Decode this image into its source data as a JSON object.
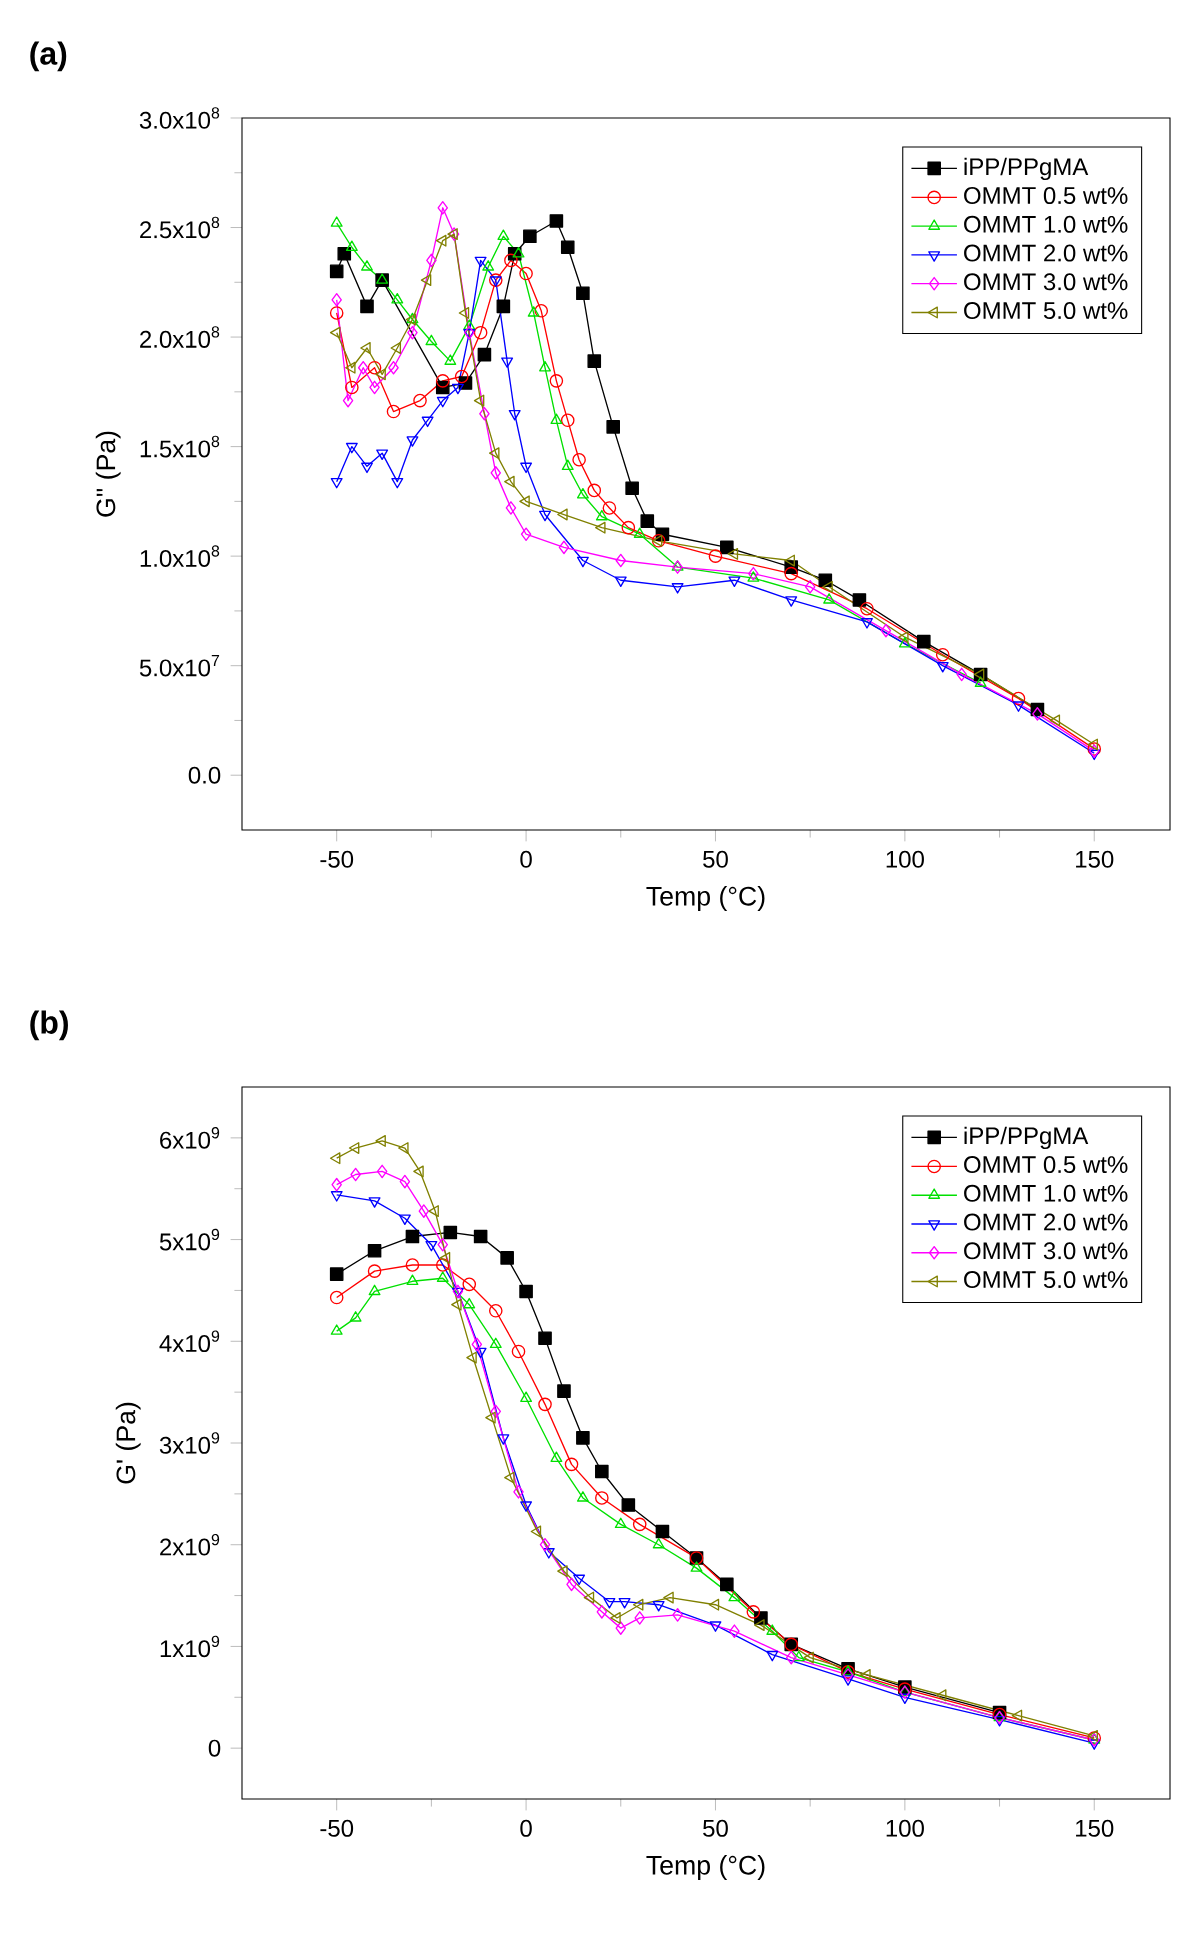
{
  "chart_data": [
    {
      "type": "line",
      "title": "(a)",
      "xlabel": "Temp (°C)",
      "ylabel": "G\" (Pa)",
      "xlim": [
        -75,
        170
      ],
      "ylim": [
        -25000000,
        300000000
      ],
      "xticks": [
        -50,
        0,
        50,
        100,
        150
      ],
      "yticks": [
        {
          "value": 0,
          "label": "0.0"
        },
        {
          "value": 50000000,
          "label": "5.0x10$^{7}$"
        },
        {
          "value": 100000000,
          "label": "1.0x10$^{8}$"
        },
        {
          "value": 150000000,
          "label": "1.5x10$^{8}$"
        },
        {
          "value": 200000000,
          "label": "2.0x10$^{8}$"
        },
        {
          "value": 250000000,
          "label": "2.5x10$^{8}$"
        },
        {
          "value": 300000000,
          "label": "3.0x10$^{8}$"
        }
      ],
      "legend": "top right",
      "series": [
        {
          "name": "iPP/PPgMA",
          "color": "#000000",
          "marker": "square",
          "x": [
            -50,
            -48,
            -42,
            -38,
            -22,
            -16,
            -11,
            -6,
            -3,
            1,
            8,
            11,
            15,
            18,
            23,
            28,
            32,
            36,
            53,
            70,
            79,
            88,
            105,
            120,
            135
          ],
          "values": [
            230000000,
            238000000,
            214000000,
            226000000,
            177000000,
            179000000,
            192000000,
            214000000,
            238000000,
            246000000,
            253000000,
            241000000,
            220000000,
            189000000,
            159000000,
            131000000,
            116000000,
            110000000,
            104000000,
            95000000,
            89000000,
            80000000,
            61000000,
            46000000,
            30000000
          ]
        },
        {
          "name": "OMMT 0.5 wt%",
          "color": "#ff0000",
          "marker": "circle",
          "x": [
            -50,
            -46,
            -40,
            -35,
            -28,
            -22,
            -17,
            -12,
            -8,
            -4,
            0,
            4,
            8,
            11,
            14,
            18,
            22,
            27,
            35,
            50,
            70,
            90,
            110,
            130,
            150
          ],
          "values": [
            211000000,
            177000000,
            186000000,
            166000000,
            171000000,
            180000000,
            182000000,
            202000000,
            226000000,
            235000000,
            229000000,
            212000000,
            180000000,
            162000000,
            144000000,
            130000000,
            122000000,
            113000000,
            107000000,
            100000000,
            92000000,
            76000000,
            55000000,
            35000000,
            12000000
          ]
        },
        {
          "name": "OMMT 1.0 wt%",
          "color": "#00e000",
          "marker": "triangle",
          "x": [
            -50,
            -46,
            -42,
            -38,
            -34,
            -30,
            -25,
            -20,
            -15,
            -10,
            -6,
            -2,
            2,
            5,
            8,
            11,
            15,
            20,
            30,
            40,
            60,
            80,
            100,
            120
          ],
          "values": [
            252000000,
            241000000,
            232000000,
            226000000,
            217000000,
            208000000,
            198000000,
            189000000,
            205000000,
            232000000,
            246000000,
            238000000,
            211000000,
            186000000,
            162000000,
            141000000,
            128000000,
            118000000,
            110000000,
            95000000,
            90000000,
            80000000,
            60000000,
            42000000
          ]
        },
        {
          "name": "OMMT 2.0 wt%",
          "color": "#0000ff",
          "marker": "triangle-down",
          "x": [
            -50,
            -46,
            -42,
            -38,
            -34,
            -30,
            -26,
            -22,
            -18,
            -15,
            -12,
            -8,
            -5,
            -3,
            0,
            5,
            15,
            25,
            40,
            55,
            70,
            90,
            110,
            130,
            150
          ],
          "values": [
            134000000,
            150000000,
            141000000,
            147000000,
            134000000,
            153000000,
            162000000,
            171000000,
            177000000,
            202000000,
            235000000,
            226000000,
            189000000,
            165000000,
            141000000,
            119000000,
            98000000,
            89000000,
            86000000,
            89000000,
            80000000,
            70000000,
            50000000,
            32000000,
            10000000
          ]
        },
        {
          "name": "OMMT 3.0 wt%",
          "color": "#ff00ff",
          "marker": "diamond",
          "x": [
            -50,
            -47,
            -43,
            -40,
            -35,
            -30,
            -25,
            -22,
            -19,
            -15,
            -11,
            -8,
            -4,
            0,
            10,
            25,
            40,
            60,
            75,
            95,
            115,
            135,
            150
          ],
          "values": [
            217000000,
            171000000,
            186000000,
            177000000,
            186000000,
            202000000,
            235000000,
            259000000,
            247000000,
            202000000,
            165000000,
            138000000,
            122000000,
            110000000,
            104000000,
            98000000,
            95000000,
            92000000,
            86000000,
            66000000,
            46000000,
            28000000,
            11000000
          ]
        },
        {
          "name": "OMMT 5.0 wt%",
          "color": "#808000",
          "marker": "triangle-left",
          "x": [
            -50,
            -46,
            -42,
            -38,
            -34,
            -30,
            -26,
            -22,
            -19,
            -16,
            -12,
            -8,
            -4,
            0,
            10,
            20,
            35,
            55,
            70,
            80,
            100,
            120,
            140,
            150
          ],
          "values": [
            202000000,
            186000000,
            195000000,
            183000000,
            195000000,
            208000000,
            226000000,
            244000000,
            247000000,
            211000000,
            171000000,
            147000000,
            134000000,
            125000000,
            119000000,
            113000000,
            107000000,
            101000000,
            98000000,
            86000000,
            63000000,
            46000000,
            25000000,
            14000000
          ]
        }
      ]
    },
    {
      "type": "line",
      "title": "(b)",
      "xlabel": "Temp (°C)",
      "ylabel": "G' (Pa)",
      "xlim": [
        -75,
        170
      ],
      "ylim": [
        -500000000,
        6500000000
      ],
      "xticks": [
        -50,
        0,
        50,
        100,
        150
      ],
      "yticks": [
        {
          "value": 0,
          "label": "0"
        },
        {
          "value": 1000000000,
          "label": "1x10$^{9}$"
        },
        {
          "value": 2000000000,
          "label": "2x10$^{9}$"
        },
        {
          "value": 3000000000,
          "label": "3x10$^{9}$"
        },
        {
          "value": 4000000000,
          "label": "4x10$^{9}$"
        },
        {
          "value": 5000000000,
          "label": "5x10$^{9}$"
        },
        {
          "value": 6000000000,
          "label": "6x10$^{9}$"
        }
      ],
      "legend": "top right",
      "series": [
        {
          "name": "iPP/PPgMA",
          "color": "#000000",
          "marker": "square",
          "x": [
            -50,
            -40,
            -30,
            -20,
            -12,
            -5,
            0,
            5,
            10,
            15,
            20,
            27,
            36,
            45,
            53,
            62,
            70,
            85,
            100,
            125
          ],
          "values": [
            4660000000,
            4890000000,
            5030000000,
            5070000000,
            5030000000,
            4820000000,
            4490000000,
            4030000000,
            3510000000,
            3050000000,
            2720000000,
            2390000000,
            2130000000,
            1870000000,
            1610000000,
            1280000000,
            1020000000,
            780000000,
            600000000,
            350000000
          ]
        },
        {
          "name": "OMMT 0.5 wt%",
          "color": "#ff0000",
          "marker": "circle",
          "x": [
            -50,
            -40,
            -30,
            -22,
            -15,
            -8,
            -2,
            5,
            12,
            20,
            30,
            45,
            60,
            70,
            85,
            100,
            125,
            150
          ],
          "values": [
            4430000000,
            4690000000,
            4750000000,
            4750000000,
            4560000000,
            4300000000,
            3900000000,
            3380000000,
            2790000000,
            2460000000,
            2200000000,
            1870000000,
            1340000000,
            1020000000,
            750000000,
            580000000,
            330000000,
            100000000
          ]
        },
        {
          "name": "OMMT 1.0 wt%",
          "color": "#00e000",
          "marker": "triangle",
          "x": [
            -50,
            -45,
            -40,
            -30,
            -22,
            -15,
            -8,
            0,
            8,
            15,
            25,
            35,
            45,
            55,
            65,
            72,
            85,
            100,
            125,
            150
          ],
          "values": [
            4100000000,
            4230000000,
            4490000000,
            4590000000,
            4620000000,
            4360000000,
            3970000000,
            3440000000,
            2850000000,
            2460000000,
            2200000000,
            2000000000,
            1770000000,
            1480000000,
            1150000000,
            890000000,
            750000000,
            550000000,
            300000000,
            80000000
          ]
        },
        {
          "name": "OMMT 2.0 wt%",
          "color": "#0000ff",
          "marker": "triangle-down",
          "x": [
            -50,
            -40,
            -32,
            -25,
            -18,
            -12,
            -6,
            0,
            6,
            14,
            22,
            26,
            35,
            50,
            65,
            85,
            100,
            125,
            150
          ],
          "values": [
            5440000000,
            5380000000,
            5210000000,
            4950000000,
            4490000000,
            3900000000,
            3050000000,
            2390000000,
            1930000000,
            1670000000,
            1440000000,
            1440000000,
            1410000000,
            1210000000,
            920000000,
            680000000,
            500000000,
            280000000,
            50000000
          ]
        },
        {
          "name": "OMMT 3.0 wt%",
          "color": "#ff00ff",
          "marker": "diamond",
          "x": [
            -50,
            -45,
            -38,
            -32,
            -27,
            -22,
            -18,
            -13,
            -8,
            -2,
            5,
            12,
            20,
            25,
            30,
            40,
            55,
            70,
            85,
            100,
            125,
            150
          ],
          "values": [
            5540000000,
            5640000000,
            5670000000,
            5570000000,
            5280000000,
            4950000000,
            4490000000,
            3970000000,
            3310000000,
            2520000000,
            2000000000,
            1610000000,
            1340000000,
            1180000000,
            1280000000,
            1310000000,
            1150000000,
            890000000,
            720000000,
            550000000,
            300000000,
            80000000
          ]
        },
        {
          "name": "OMMT 5.0 wt%",
          "color": "#808000",
          "marker": "triangle-left",
          "x": [
            -50,
            -45,
            -38,
            -32,
            -28,
            -24,
            -21,
            -18,
            -14,
            -9,
            -4,
            3,
            10,
            17,
            24,
            30,
            38,
            50,
            62,
            75,
            90,
            110,
            130,
            150
          ],
          "values": [
            5800000000,
            5900000000,
            5970000000,
            5900000000,
            5670000000,
            5280000000,
            4820000000,
            4360000000,
            3840000000,
            3250000000,
            2660000000,
            2130000000,
            1740000000,
            1480000000,
            1280000000,
            1410000000,
            1480000000,
            1410000000,
            1210000000,
            890000000,
            720000000,
            520000000,
            320000000,
            120000000
          ]
        }
      ]
    }
  ]
}
